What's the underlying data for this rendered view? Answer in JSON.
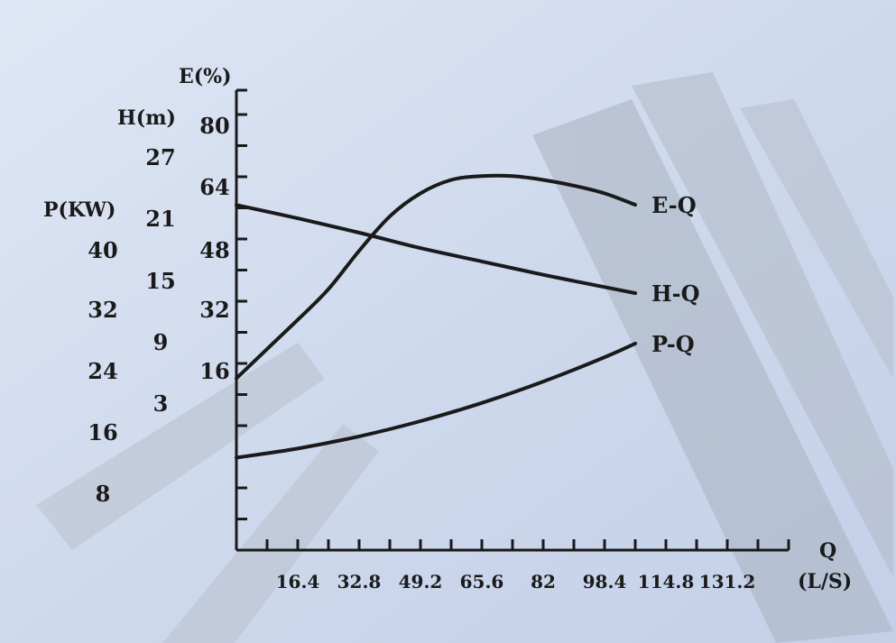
{
  "chart_data": {
    "type": "line",
    "xlabel": "Q",
    "x_unit": "(L/S)",
    "x_ticks": [
      "16.4",
      "32.8",
      "49.2",
      "65.6",
      "82",
      "98.4",
      "114.8",
      "131.2"
    ],
    "xlim": [
      0,
      147.6
    ],
    "axes": {
      "E": {
        "label": "E(%)",
        "ticks": [
          "80",
          "64",
          "48",
          "32",
          "16"
        ],
        "ylim": [
          0,
          88
        ]
      },
      "H": {
        "label": "H(m)",
        "ticks": [
          "27",
          "21",
          "15",
          "9",
          "3"
        ],
        "ylim": [
          0,
          32
        ]
      },
      "P": {
        "label": "P(KW)",
        "ticks": [
          "40",
          "32",
          "24",
          "16",
          "8"
        ],
        "ylim": [
          0,
          46
        ]
      }
    },
    "series": [
      {
        "name": "E-Q",
        "axis": "E",
        "x": [
          0,
          8,
          16.4,
          24.6,
          32.8,
          41,
          49.2,
          57.4,
          65.6,
          73.8,
          82,
          90.2,
          98.4,
          106.6
        ],
        "y": [
          14.2,
          21.7,
          29.5,
          37.5,
          47.5,
          56.5,
          62.5,
          66,
          67,
          67,
          66,
          64.5,
          62.5,
          59.5
        ]
      },
      {
        "name": "H-Q",
        "axis": "H",
        "x": [
          0,
          16.4,
          32.8,
          49.2,
          65.6,
          82,
          98.4,
          106.6
        ],
        "y": [
          22.4,
          21.1,
          19.7,
          18.2,
          16.9,
          15.6,
          14.4,
          13.8
        ]
      },
      {
        "name": "P-Q",
        "axis": "P",
        "x": [
          0,
          16.4,
          32.8,
          49.2,
          65.6,
          82,
          98.4,
          106.6
        ],
        "y": [
          12.8,
          14,
          15.6,
          17.6,
          20,
          22.8,
          26,
          27.8
        ]
      }
    ]
  }
}
